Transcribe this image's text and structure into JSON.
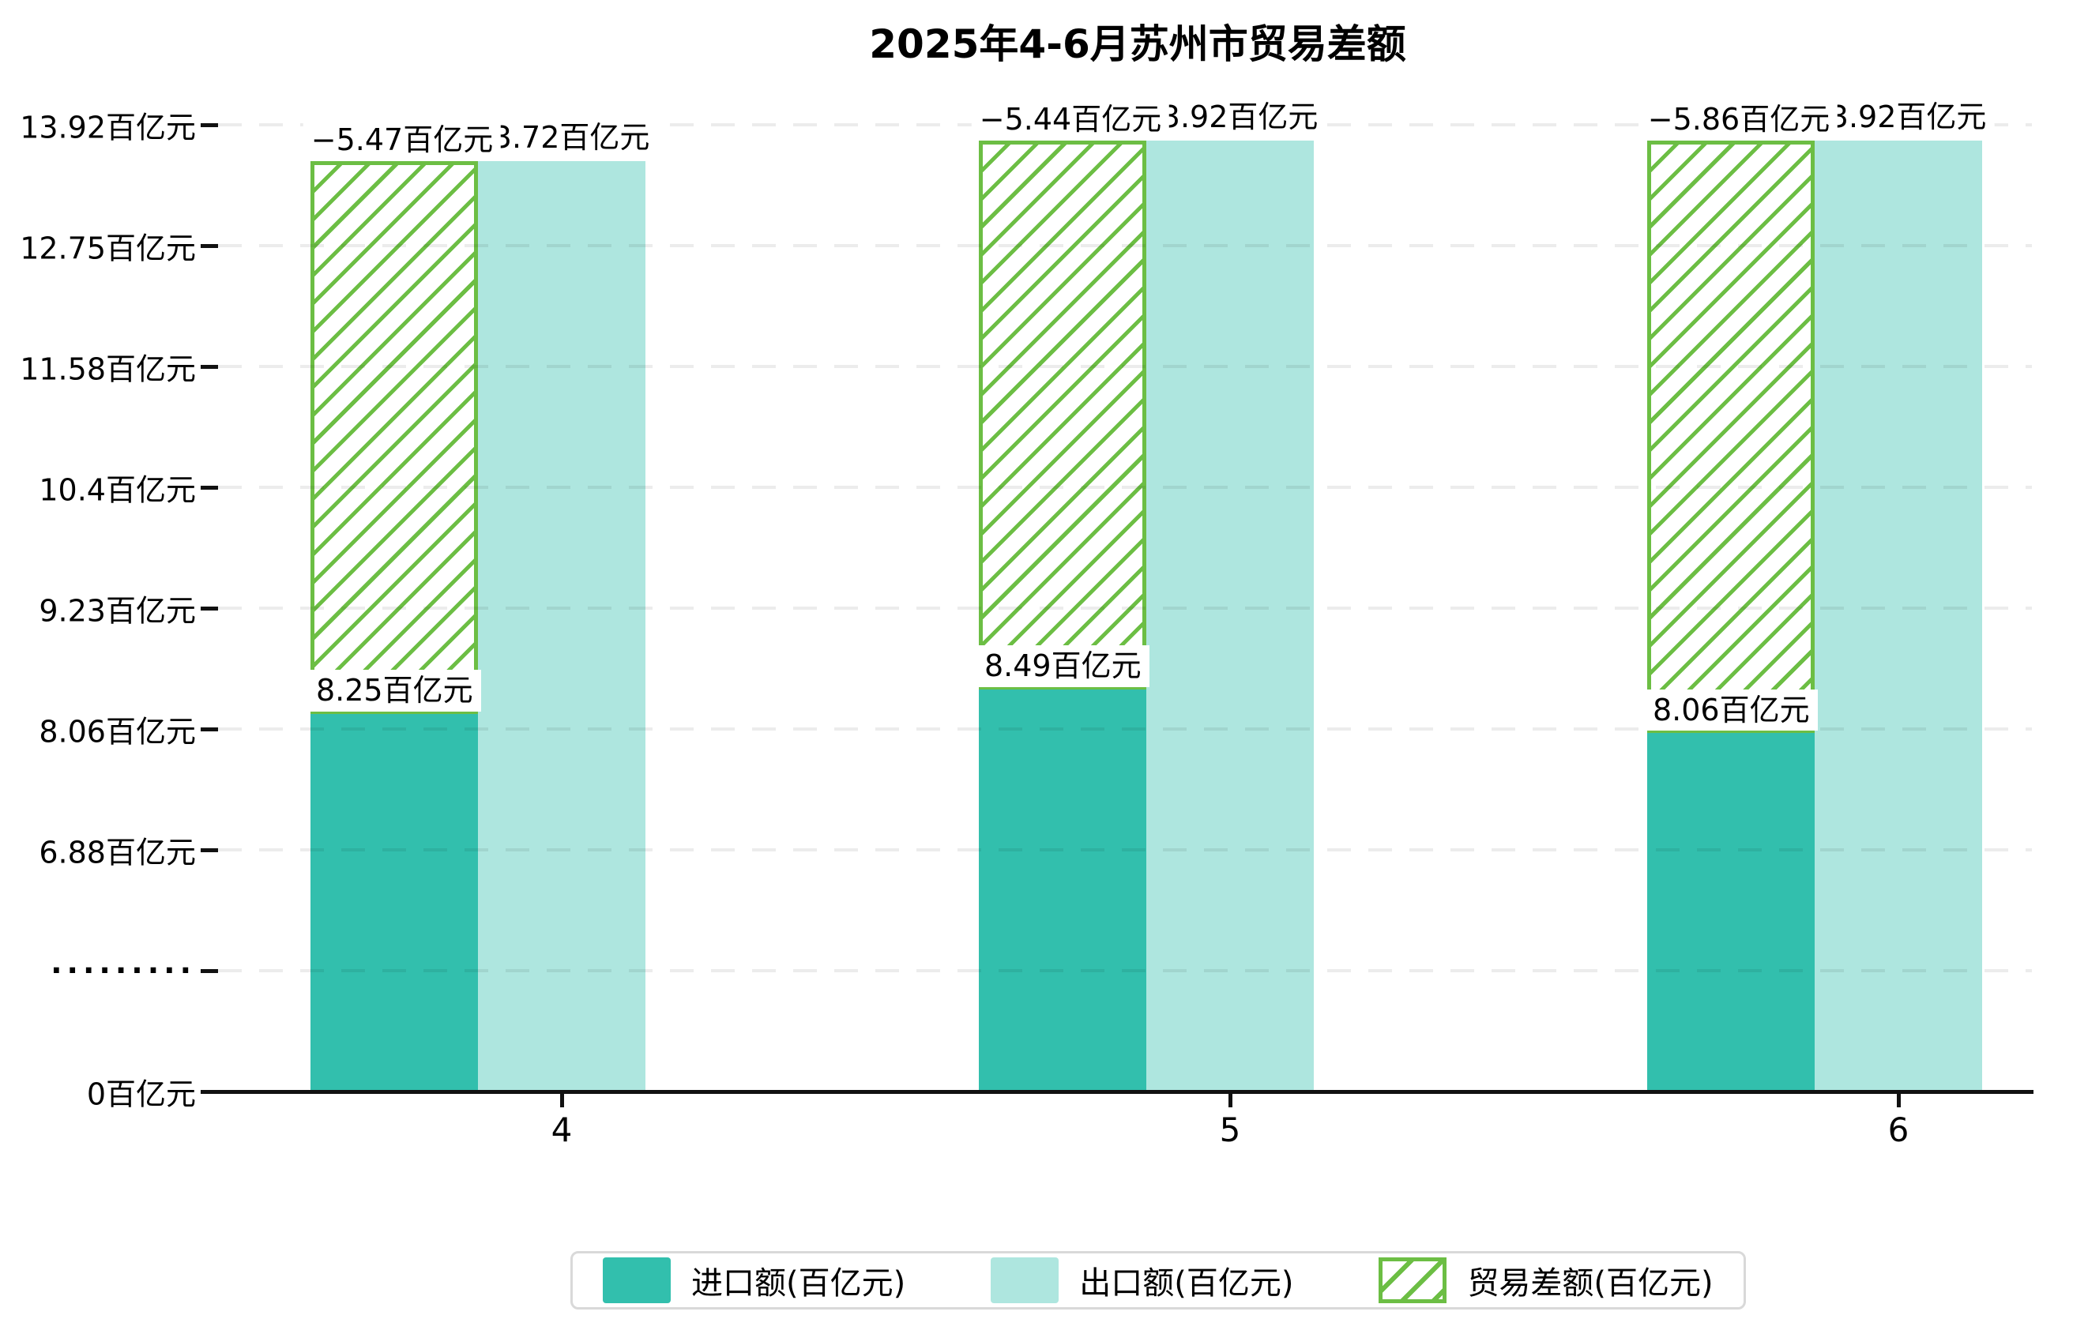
{
  "title": "2025年4-6月苏州市贸易差额",
  "chart_data": {
    "type": "bar",
    "title": "2025年4-6月苏州市贸易差额",
    "categories": [
      "4",
      "5",
      "6"
    ],
    "unit": "百亿元",
    "y_ticks": [
      "13.92百亿元",
      "12.75百亿元",
      "11.58百亿元",
      "10.4百亿元",
      "9.23百亿元",
      "8.06百亿元",
      "6.88百亿元",
      ".........",
      "0百亿元"
    ],
    "y_tick_values": [
      13.92,
      12.75,
      11.58,
      10.4,
      9.23,
      8.06,
      6.88,
      null,
      0
    ],
    "axis_break": true,
    "axis_break_between": [
      0,
      5.71
    ],
    "ylim": [
      0,
      13.92
    ],
    "grid": "horizontal-dashed",
    "legend_position": "bottom-center",
    "series": [
      {
        "name": "进口额(百亿元)",
        "type": "bar",
        "color": "#32BFAD",
        "values": [
          8.25,
          8.49,
          8.06
        ],
        "labels": [
          "8.25百亿元",
          "8.49百亿元",
          "8.06百亿元"
        ]
      },
      {
        "name": "出口额(百亿元)",
        "type": "bar",
        "color": "#AEE6DF",
        "values": [
          13.72,
          13.92,
          13.92
        ],
        "labels": [
          "13.72百亿元",
          "13.92百亿元",
          "13.92百亿元"
        ]
      },
      {
        "name": "贸易差额(百亿元)",
        "type": "bar-hatched",
        "color": "#6CBE44",
        "values": [
          -5.47,
          -5.44,
          -5.86
        ],
        "labels": [
          "−5.47百亿元",
          "−5.44百亿元",
          "−5.86百亿元"
        ],
        "note": "hatched segment stacked on import bar reaching export level"
      }
    ]
  },
  "legend": {
    "items": [
      {
        "label": "进口额(百亿元)"
      },
      {
        "label": "出口额(百亿元)"
      },
      {
        "label": "贸易差额(百亿元)"
      }
    ]
  },
  "colors": {
    "import": "#32BFAD",
    "export": "#AEE6DF",
    "balance": "#6CBE44",
    "axis": "#111111",
    "gridline": "#ececec",
    "background": "#ffffff"
  }
}
